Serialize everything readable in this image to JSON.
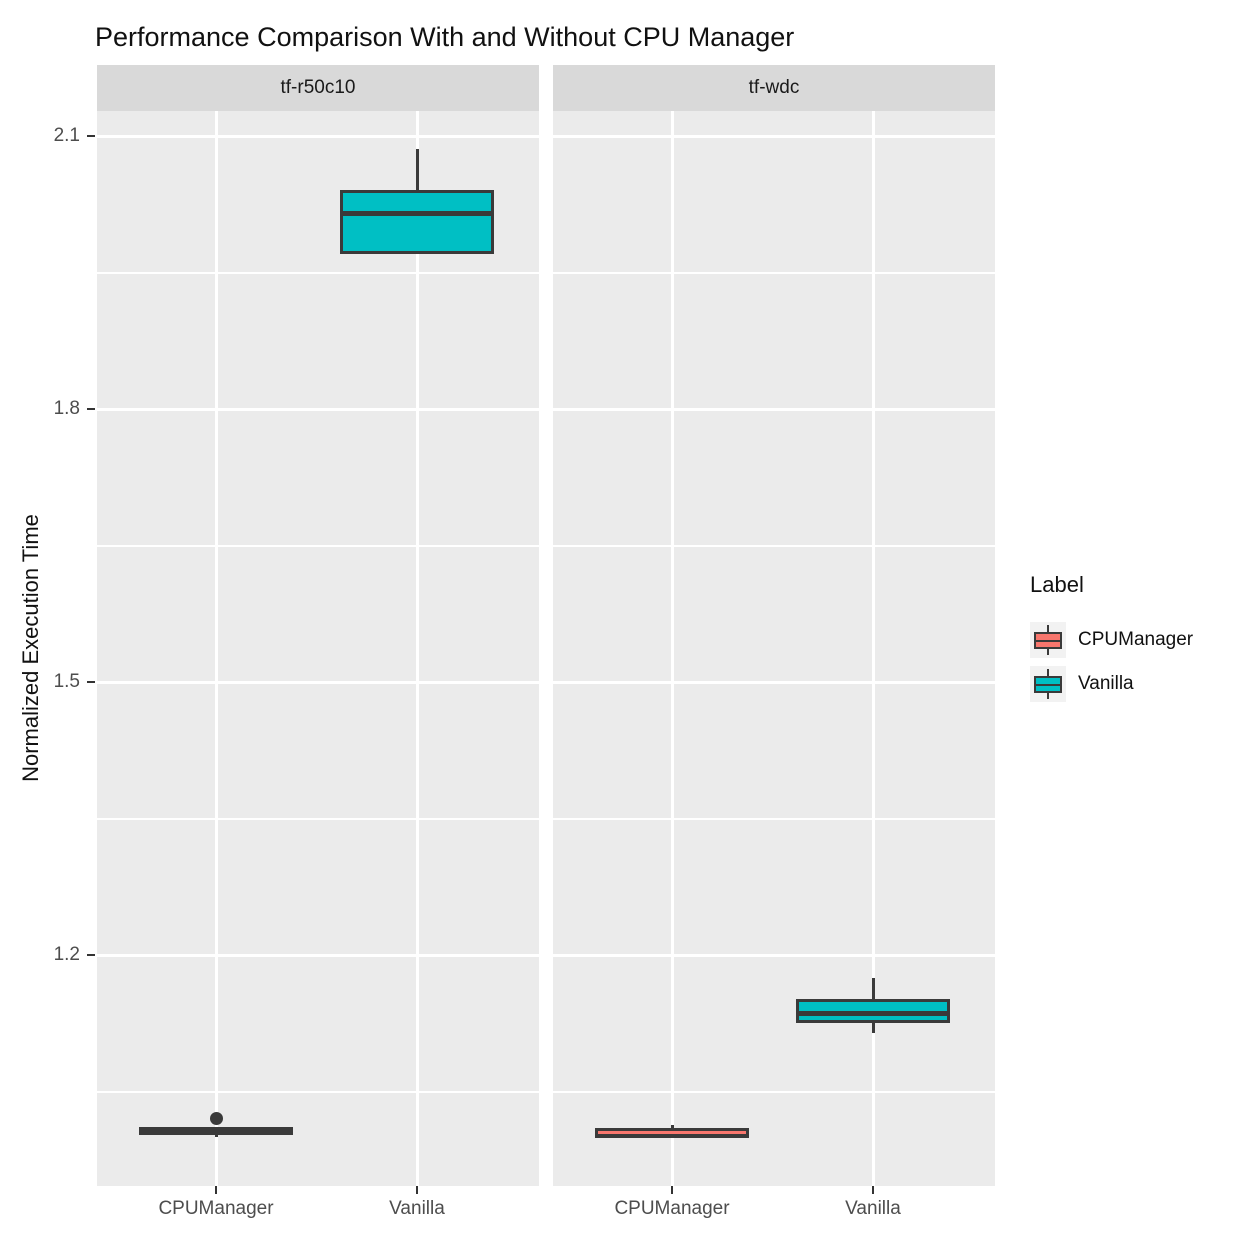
{
  "chart_data": {
    "type": "boxplot",
    "title": "Performance Comparison With and Without CPU Manager",
    "xlabel": "",
    "ylabel": "Normalized Execution Time",
    "facet_labels": [
      "tf-r50c10",
      "tf-wdc"
    ],
    "categories": [
      "CPUManager",
      "Vanilla"
    ],
    "y_ticks": [
      2.1,
      1.8,
      1.5,
      1.2
    ],
    "y_minor_ticks": [
      1.95,
      1.65,
      1.35,
      1.05
    ],
    "ylim": [
      0.95,
      2.13
    ],
    "grid": "on",
    "legend_position": "right",
    "facets": [
      {
        "label": "tf-r50c10",
        "groups": [
          {
            "category": "CPUManager",
            "color_key": "CPUManager",
            "whisker_low": 1.0,
            "q1": 1.002,
            "median": 1.006,
            "q3": 1.011,
            "whisker_high": 1.011,
            "outliers": [
              1.02
            ]
          },
          {
            "category": "Vanilla",
            "color_key": "Vanilla",
            "whisker_low": 1.97,
            "q1": 1.97,
            "median": 2.015,
            "q3": 2.041,
            "whisker_high": 2.086,
            "outliers": []
          }
        ]
      },
      {
        "label": "tf-wdc",
        "groups": [
          {
            "category": "CPUManager",
            "color_key": "CPUManager",
            "whisker_low": 0.999,
            "q1": 0.999,
            "median": 1.001,
            "q3": 1.01,
            "whisker_high": 1.013,
            "outliers": []
          },
          {
            "category": "Vanilla",
            "color_key": "Vanilla",
            "whisker_low": 1.114,
            "q1": 1.125,
            "median": 1.136,
            "q3": 1.152,
            "whisker_high": 1.175,
            "outliers": []
          }
        ]
      }
    ]
  },
  "legend": {
    "title": "Label",
    "entries": [
      {
        "label": "CPUManager",
        "color": "#F8766D"
      },
      {
        "label": "Vanilla",
        "color": "#00BFC4"
      }
    ]
  },
  "colors": {
    "background": "#FFFFFF",
    "panel_background": "#EBEBEB",
    "strip_background": "#D9D9D9",
    "gridline": "#FFFFFF",
    "box_outline": "#3A3A3A",
    "axis_text": "#4D4D4D",
    "text": "#111111",
    "legend_key_background": "#F2F2F2",
    "series": {
      "CPUManager": "#F8766D",
      "Vanilla": "#00BFC4"
    }
  }
}
